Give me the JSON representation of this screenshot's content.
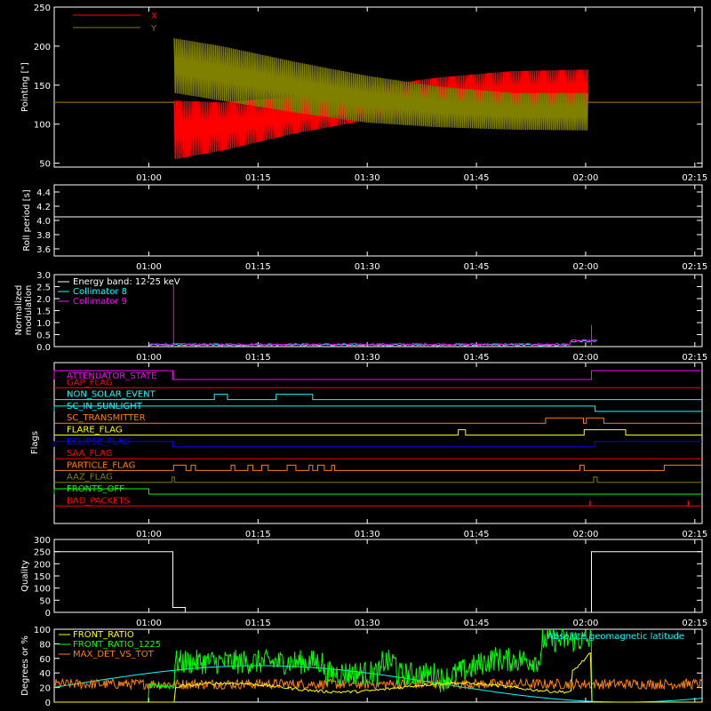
{
  "time_ticks": [
    "01:00",
    "01:15",
    "01:30",
    "01:45",
    "02:00",
    "02:15"
  ],
  "time_range_min": [
    47,
    136
  ],
  "tick_times_min": [
    60,
    75,
    90,
    105,
    120,
    135
  ],
  "chart_data": [
    {
      "type": "line",
      "panel": "pointing",
      "ylabel": "Pointing [\"]",
      "ylim": [
        45,
        250
      ],
      "yticks": [
        50,
        100,
        150,
        200,
        250
      ],
      "legend": "top-left",
      "series": [
        {
          "name": "X",
          "color": "#ff0000",
          "baseline": 128,
          "oscillation_start_min": 63.5,
          "oscillation_end_min": 120.3,
          "upper_envelope": [
            [
              63.5,
              130
            ],
            [
              70,
              128
            ],
            [
              80,
              135
            ],
            [
              90,
              148
            ],
            [
              100,
              160
            ],
            [
              110,
              168
            ],
            [
              120.3,
              170
            ]
          ],
          "lower_envelope": [
            [
              63.5,
              55
            ],
            [
              70,
              66
            ],
            [
              80,
              88
            ],
            [
              90,
              105
            ],
            [
              100,
              112
            ],
            [
              110,
              115
            ],
            [
              120.3,
              117
            ]
          ]
        },
        {
          "name": "Y",
          "color": "#808000",
          "baseline": 128,
          "oscillation_start_min": 63.5,
          "oscillation_end_min": 120.3,
          "upper_envelope": [
            [
              63.5,
              210
            ],
            [
              70,
              200
            ],
            [
              80,
              180
            ],
            [
              90,
              162
            ],
            [
              100,
              148
            ],
            [
              110,
              140
            ],
            [
              120.3,
              140
            ]
          ],
          "lower_envelope": [
            [
              63.5,
              140
            ],
            [
              70,
              130
            ],
            [
              80,
              115
            ],
            [
              90,
              102
            ],
            [
              100,
              96
            ],
            [
              110,
              93
            ],
            [
              120.3,
              92
            ]
          ]
        }
      ]
    },
    {
      "type": "line",
      "panel": "roll",
      "ylabel": "Roll period [s]",
      "ylim": [
        3.5,
        4.5
      ],
      "yticks": [
        3.6,
        3.8,
        4.0,
        4.2,
        4.4
      ],
      "series": [
        {
          "name": "",
          "color": "#ffffff",
          "constant": 4.05
        }
      ]
    },
    {
      "type": "line",
      "panel": "modulation",
      "ylabel": "Normalized modulation",
      "ylim": [
        0,
        3.0
      ],
      "yticks": [
        0.0,
        0.5,
        1.0,
        1.5,
        2.0,
        2.5,
        3.0
      ],
      "legend": "top-left",
      "series": [
        {
          "name": "Energy band: 12-25 keV",
          "color": "#ffffff",
          "start_min": 47,
          "end_min": 136
        },
        {
          "name": "Collimator 8",
          "color": "#00ffff",
          "start_min": 60,
          "end_min": 121.5,
          "level": 0.07
        },
        {
          "name": "Collimator 9",
          "color": "#ff00ff",
          "start_min": 60,
          "end_min": 121.5,
          "level": 0.1,
          "spikes": [
            [
              63.4,
              2.6
            ],
            [
              120.8,
              0.9
            ]
          ]
        }
      ]
    },
    {
      "type": "line",
      "panel": "flags",
      "ylabel": "Flags",
      "flags": [
        {
          "name": "ATTENUATOR_STATE",
          "color": "#ff00ff",
          "high": [
            [
              47,
              63.3
            ],
            [
              120.8,
              136
            ]
          ],
          "step": 1
        },
        {
          "name": "GAP_FLAG",
          "color": "#ff0000",
          "high": [],
          "step": 0.5
        },
        {
          "name": "NON_SOLAR_EVENT",
          "color": "#00ffff",
          "high": [
            [
              69,
              70.8
            ],
            [
              77.5,
              82.5
            ]
          ],
          "step": 0.5
        },
        {
          "name": "SC_IN_SUNLIGHT",
          "color": "#00ffff",
          "high": [
            [
              47,
              121.3
            ]
          ],
          "step": 0.5
        },
        {
          "name": "SC_TRANSMITTER",
          "color": "#ff8000",
          "high": [
            [
              114.5,
              119.7
            ],
            [
              120.1,
              122.5
            ]
          ],
          "step": 0.5
        },
        {
          "name": "FLARE_FLAG",
          "color": "#ffff00",
          "high": [
            [
              102.5,
              103.5
            ],
            [
              119.8,
              125.5
            ]
          ],
          "step": 0.5
        },
        {
          "name": "ECLIPSE_FLAG",
          "color": "#0000ff",
          "high": [
            [
              47,
              63.3
            ],
            [
              121.3,
              136
            ]
          ],
          "step": 0.5
        },
        {
          "name": "SAA_FLAG",
          "color": "#ff0000",
          "high": [],
          "step": 0.5
        },
        {
          "name": "PARTICLE_FLAG",
          "color": "#ff8000",
          "high": [
            [
              63.4,
              65.1
            ],
            [
              65.8,
              66.4
            ],
            [
              71.3,
              71.8
            ],
            [
              73.6,
              74.3
            ],
            [
              75.5,
              76.4
            ],
            [
              79,
              80.2
            ],
            [
              82,
              82.5
            ],
            [
              83.2,
              84.1
            ],
            [
              85.1,
              85.5
            ],
            [
              119.2,
              119.8
            ],
            [
              130.8,
              136
            ]
          ],
          "step": 0.5
        },
        {
          "name": "AAZ_FLAG",
          "color": "#808000",
          "high": [
            [
              63.2,
              63.5
            ],
            [
              121.1,
              121.6
            ]
          ],
          "step": 0.5
        },
        {
          "name": "FRONTS_OFF",
          "color": "#00ff00",
          "high": [
            [
              47,
              60
            ]
          ],
          "step": 0.5
        },
        {
          "name": "BAD_PACKETS",
          "color": "#ff0000",
          "high": [],
          "spikes": [
            120.6,
            134.1
          ],
          "step": 0.5
        }
      ]
    },
    {
      "type": "line",
      "panel": "quality",
      "ylabel": "Quality",
      "ylim": [
        0,
        300
      ],
      "yticks": [
        0,
        50,
        100,
        150,
        200,
        250,
        300
      ],
      "series": [
        {
          "name": "",
          "color": "#ffffff",
          "segments": [
            [
              47,
              63.3,
              250
            ],
            [
              63.3,
              65,
              20
            ],
            [
              65,
              120.8,
              0
            ],
            [
              120.8,
              136,
              250
            ]
          ]
        }
      ]
    },
    {
      "type": "line",
      "panel": "ratios",
      "ylabel": "Degrees or %",
      "ylim": [
        0,
        100
      ],
      "yticks": [
        0,
        20,
        40,
        60,
        80,
        100
      ],
      "legend": "top-left",
      "series": [
        {
          "name": "FRONT_RATIO",
          "color": "#ffff00"
        },
        {
          "name": "FRONT_RATIO_1225",
          "color": "#00ff00"
        },
        {
          "name": "MAX_DET_VS_TOT",
          "color": "#ff8000"
        },
        {
          "name": "Absolute geomagnetic latitude",
          "color": "#00ffff"
        }
      ]
    }
  ]
}
